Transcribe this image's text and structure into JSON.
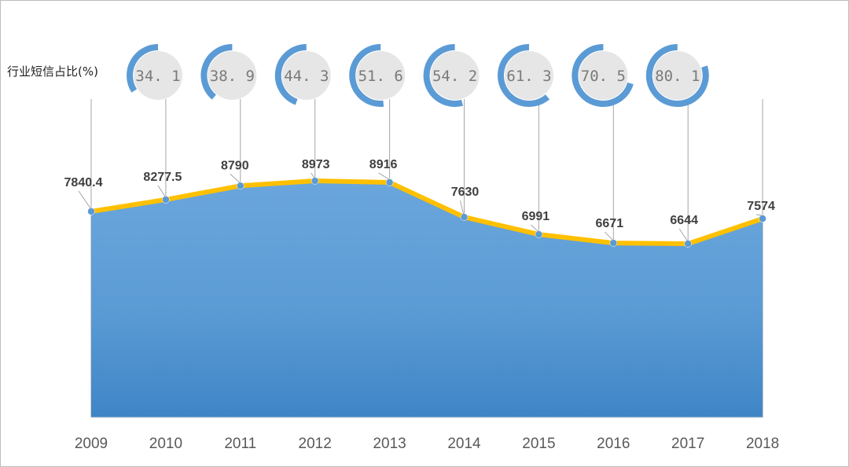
{
  "chart_data": {
    "type": "area",
    "x": [
      "2009",
      "2010",
      "2011",
      "2012",
      "2013",
      "2014",
      "2015",
      "2016",
      "2017",
      "2018"
    ],
    "series": [
      {
        "values": [
          7840.4,
          8277.5,
          8790,
          8973,
          8916,
          7630,
          6991,
          6671,
          6644,
          7574
        ]
      }
    ],
    "secondary": {
      "label": "行业短信占比(%)",
      "values": [
        34.1,
        38.9,
        44.3,
        51.6,
        54.2,
        61.3,
        70.5,
        80.1
      ]
    },
    "colors": {
      "area": "#5b9bd5",
      "line": "#ffc000",
      "donut_ring": "#5b9bd5",
      "donut_center": "#e6e6e6"
    },
    "grid": false,
    "legend": "none"
  }
}
